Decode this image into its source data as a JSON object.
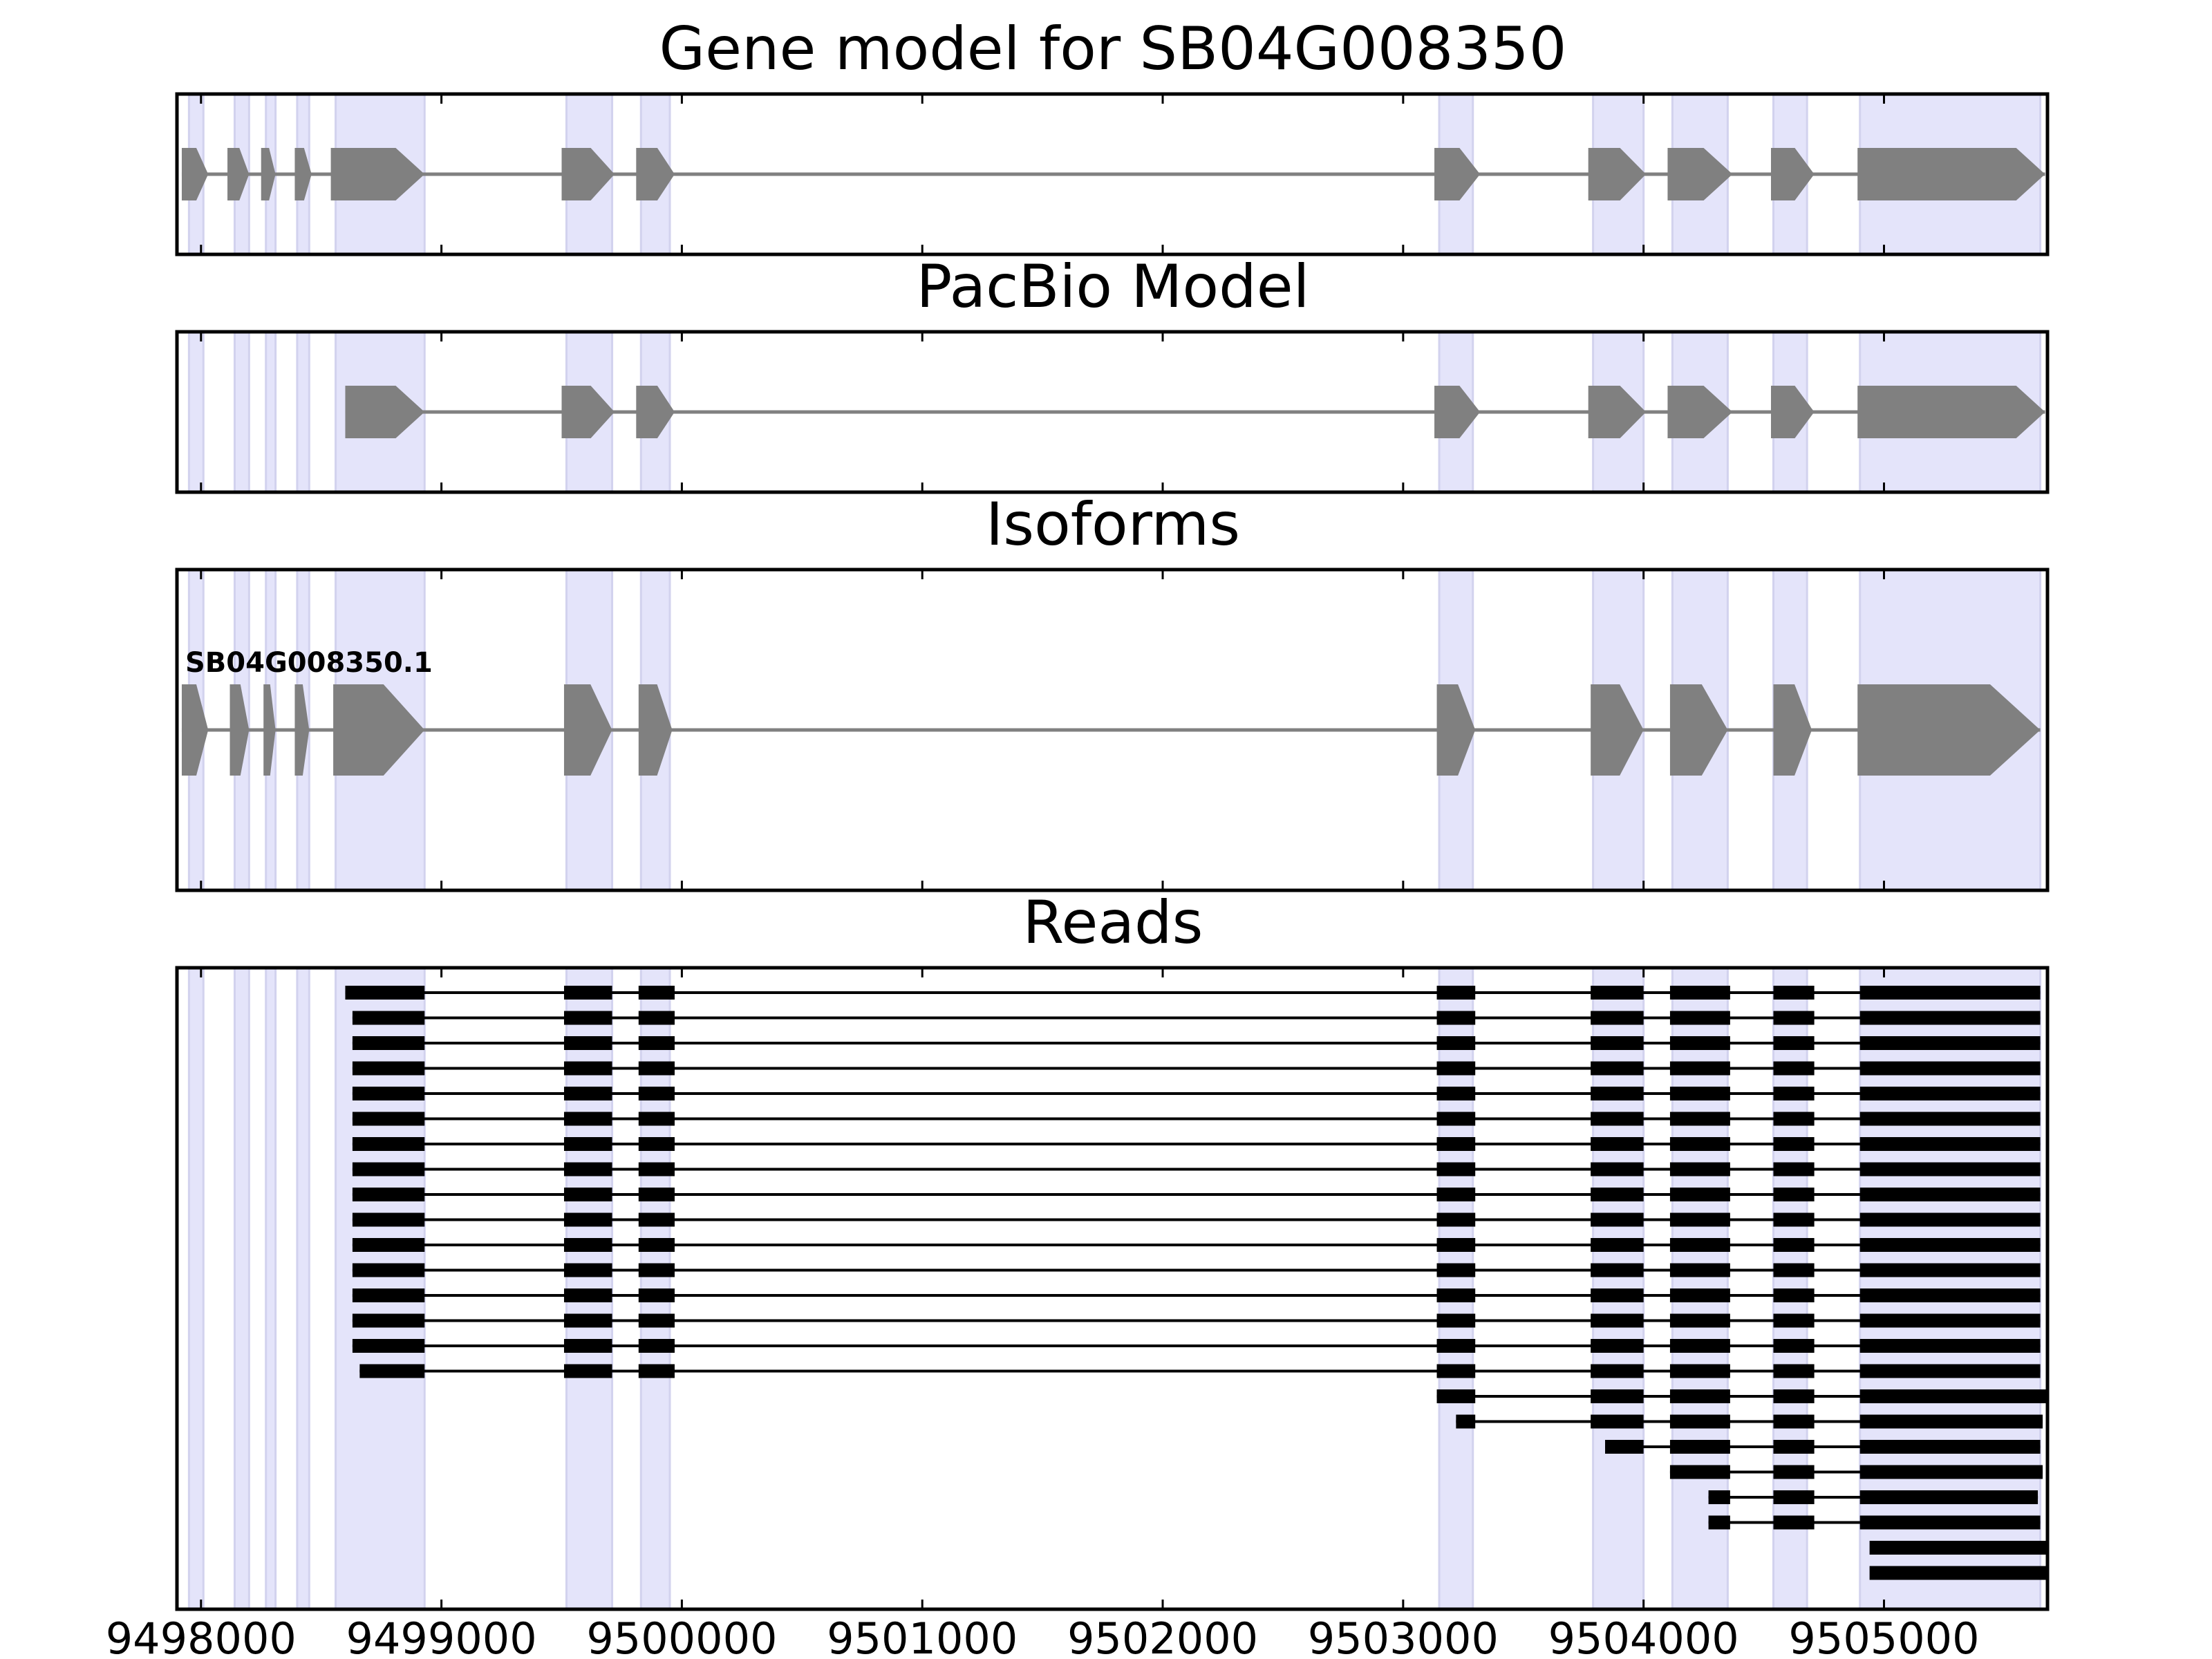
{
  "chart_data": {
    "type": "gene_model_tracks",
    "xlim": [
      9497900,
      9505680
    ],
    "x_ticks": [
      {
        "value": 9498000,
        "label": "9498000"
      },
      {
        "value": 9499000,
        "label": "9499000"
      },
      {
        "value": 9500000,
        "label": "9500000"
      },
      {
        "value": 9501000,
        "label": "9501000"
      },
      {
        "value": 9502000,
        "label": "9502000"
      },
      {
        "value": 9503000,
        "label": "9503000"
      },
      {
        "value": 9504000,
        "label": "9504000"
      },
      {
        "value": 9505000,
        "label": "9505000"
      }
    ],
    "highlight_color": "#e4e4fa",
    "exon_color": "#808080",
    "read_color": "#000000",
    "highlight_regions": [
      [
        9497950,
        9498010
      ],
      [
        9498140,
        9498200
      ],
      [
        9498270,
        9498310
      ],
      [
        9498400,
        9498450
      ],
      [
        9498560,
        9498930
      ],
      [
        9499520,
        9499710
      ],
      [
        9499830,
        9499950
      ],
      [
        9503150,
        9503290
      ],
      [
        9503790,
        9504000
      ],
      [
        9504120,
        9504350
      ],
      [
        9504540,
        9504680
      ],
      [
        9504900,
        9505650
      ]
    ],
    "panels": [
      {
        "title": "Gene model for SB04G008350",
        "strand": "+",
        "exons": [
          [
            9497920,
            9498030
          ],
          [
            9498110,
            9498200
          ],
          [
            9498250,
            9498310
          ],
          [
            9498390,
            9498460
          ],
          [
            9498540,
            9498930
          ],
          [
            9499500,
            9499720
          ],
          [
            9499810,
            9499970
          ],
          [
            9503130,
            9503320
          ],
          [
            9503770,
            9504010
          ],
          [
            9504100,
            9504370
          ],
          [
            9504530,
            9504710
          ],
          [
            9504890,
            9505670
          ]
        ]
      },
      {
        "title": "PacBio Model",
        "strand": "+",
        "exons": [
          [
            9498600,
            9498930
          ],
          [
            9499500,
            9499720
          ],
          [
            9499810,
            9499970
          ],
          [
            9503130,
            9503320
          ],
          [
            9503770,
            9504010
          ],
          [
            9504100,
            9504370
          ],
          [
            9504530,
            9504710
          ],
          [
            9504890,
            9505670
          ]
        ]
      },
      {
        "title": "Isoforms",
        "strand": "+",
        "isoforms": [
          {
            "name": "SB04G008350.1",
            "exons": [
              [
                9497920,
                9498030
              ],
              [
                9498120,
                9498200
              ],
              [
                9498260,
                9498310
              ],
              [
                9498390,
                9498450
              ],
              [
                9498550,
                9498930
              ],
              [
                9499510,
                9499710
              ],
              [
                9499820,
                9499960
              ],
              [
                9503140,
                9503300
              ],
              [
                9503780,
                9504000
              ],
              [
                9504110,
                9504350
              ],
              [
                9504540,
                9504700
              ],
              [
                9504890,
                9505650
              ]
            ]
          }
        ]
      },
      {
        "title": "Reads",
        "reads": [
          [
            [
              9498600,
              9498930
            ],
            [
              9499510,
              9499710
            ],
            [
              9499820,
              9499970
            ],
            [
              9503140,
              9503300
            ],
            [
              9503780,
              9504000
            ],
            [
              9504110,
              9504360
            ],
            [
              9504540,
              9504710
            ],
            [
              9504900,
              9505650
            ]
          ],
          [
            [
              9498630,
              9498930
            ],
            [
              9499510,
              9499710
            ],
            [
              9499820,
              9499970
            ],
            [
              9503140,
              9503300
            ],
            [
              9503780,
              9504000
            ],
            [
              9504110,
              9504360
            ],
            [
              9504540,
              9504710
            ],
            [
              9504900,
              9505650
            ]
          ],
          [
            [
              9498630,
              9498930
            ],
            [
              9499510,
              9499710
            ],
            [
              9499820,
              9499970
            ],
            [
              9503140,
              9503300
            ],
            [
              9503780,
              9504000
            ],
            [
              9504110,
              9504360
            ],
            [
              9504540,
              9504710
            ],
            [
              9504900,
              9505650
            ]
          ],
          [
            [
              9498630,
              9498930
            ],
            [
              9499510,
              9499710
            ],
            [
              9499820,
              9499970
            ],
            [
              9503140,
              9503300
            ],
            [
              9503780,
              9504000
            ],
            [
              9504110,
              9504360
            ],
            [
              9504540,
              9504710
            ],
            [
              9504900,
              9505650
            ]
          ],
          [
            [
              9498630,
              9498930
            ],
            [
              9499510,
              9499710
            ],
            [
              9499820,
              9499970
            ],
            [
              9503140,
              9503300
            ],
            [
              9503780,
              9504000
            ],
            [
              9504110,
              9504360
            ],
            [
              9504540,
              9504710
            ],
            [
              9504900,
              9505650
            ]
          ],
          [
            [
              9498630,
              9498930
            ],
            [
              9499510,
              9499710
            ],
            [
              9499820,
              9499970
            ],
            [
              9503140,
              9503300
            ],
            [
              9503780,
              9504000
            ],
            [
              9504110,
              9504360
            ],
            [
              9504540,
              9504710
            ],
            [
              9504900,
              9505650
            ]
          ],
          [
            [
              9498630,
              9498930
            ],
            [
              9499510,
              9499710
            ],
            [
              9499820,
              9499970
            ],
            [
              9503140,
              9503300
            ],
            [
              9503780,
              9504000
            ],
            [
              9504110,
              9504360
            ],
            [
              9504540,
              9504710
            ],
            [
              9504900,
              9505650
            ]
          ],
          [
            [
              9498630,
              9498930
            ],
            [
              9499510,
              9499710
            ],
            [
              9499820,
              9499970
            ],
            [
              9503140,
              9503300
            ],
            [
              9503780,
              9504000
            ],
            [
              9504110,
              9504360
            ],
            [
              9504540,
              9504710
            ],
            [
              9504900,
              9505650
            ]
          ],
          [
            [
              9498630,
              9498930
            ],
            [
              9499510,
              9499710
            ],
            [
              9499820,
              9499970
            ],
            [
              9503140,
              9503300
            ],
            [
              9503780,
              9504000
            ],
            [
              9504110,
              9504360
            ],
            [
              9504540,
              9504710
            ],
            [
              9504900,
              9505650
            ]
          ],
          [
            [
              9498630,
              9498930
            ],
            [
              9499510,
              9499710
            ],
            [
              9499820,
              9499970
            ],
            [
              9503140,
              9503300
            ],
            [
              9503780,
              9504000
            ],
            [
              9504110,
              9504360
            ],
            [
              9504540,
              9504710
            ],
            [
              9504900,
              9505650
            ]
          ],
          [
            [
              9498630,
              9498930
            ],
            [
              9499510,
              9499710
            ],
            [
              9499820,
              9499970
            ],
            [
              9503140,
              9503300
            ],
            [
              9503780,
              9504000
            ],
            [
              9504110,
              9504360
            ],
            [
              9504540,
              9504710
            ],
            [
              9504900,
              9505650
            ]
          ],
          [
            [
              9498630,
              9498930
            ],
            [
              9499510,
              9499710
            ],
            [
              9499820,
              9499970
            ],
            [
              9503140,
              9503300
            ],
            [
              9503780,
              9504000
            ],
            [
              9504110,
              9504360
            ],
            [
              9504540,
              9504710
            ],
            [
              9504900,
              9505650
            ]
          ],
          [
            [
              9498630,
              9498930
            ],
            [
              9499510,
              9499710
            ],
            [
              9499820,
              9499970
            ],
            [
              9503140,
              9503300
            ],
            [
              9503780,
              9504000
            ],
            [
              9504110,
              9504360
            ],
            [
              9504540,
              9504710
            ],
            [
              9504900,
              9505650
            ]
          ],
          [
            [
              9498630,
              9498930
            ],
            [
              9499510,
              9499710
            ],
            [
              9499820,
              9499970
            ],
            [
              9503140,
              9503300
            ],
            [
              9503780,
              9504000
            ],
            [
              9504110,
              9504360
            ],
            [
              9504540,
              9504710
            ],
            [
              9504900,
              9505650
            ]
          ],
          [
            [
              9498630,
              9498930
            ],
            [
              9499510,
              9499710
            ],
            [
              9499820,
              9499970
            ],
            [
              9503140,
              9503300
            ],
            [
              9503780,
              9504000
            ],
            [
              9504110,
              9504360
            ],
            [
              9504540,
              9504710
            ],
            [
              9504900,
              9505650
            ]
          ],
          [
            [
              9498660,
              9498930
            ],
            [
              9499510,
              9499710
            ],
            [
              9499820,
              9499970
            ],
            [
              9503140,
              9503300
            ],
            [
              9503780,
              9504000
            ],
            [
              9504110,
              9504360
            ],
            [
              9504540,
              9504710
            ],
            [
              9504900,
              9505650
            ]
          ],
          [
            [
              9503140,
              9503300
            ],
            [
              9503780,
              9504000
            ],
            [
              9504110,
              9504360
            ],
            [
              9504540,
              9504710
            ],
            [
              9504900,
              9505680
            ]
          ],
          [
            [
              9503220,
              9503300
            ],
            [
              9503780,
              9504000
            ],
            [
              9504110,
              9504360
            ],
            [
              9504540,
              9504710
            ],
            [
              9504900,
              9505660
            ]
          ],
          [
            [
              9503840,
              9504000
            ],
            [
              9504110,
              9504360
            ],
            [
              9504540,
              9504710
            ],
            [
              9504900,
              9505650
            ]
          ],
          [
            [
              9504110,
              9504360
            ],
            [
              9504540,
              9504710
            ],
            [
              9504900,
              9505660
            ]
          ],
          [
            [
              9504270,
              9504360
            ],
            [
              9504540,
              9504710
            ],
            [
              9504900,
              9505640
            ]
          ],
          [
            [
              9504270,
              9504360
            ],
            [
              9504540,
              9504710
            ],
            [
              9504900,
              9505650
            ]
          ],
          [
            [
              9504940,
              9505680
            ]
          ],
          [
            [
              9504940,
              9505680
            ]
          ]
        ]
      }
    ]
  }
}
